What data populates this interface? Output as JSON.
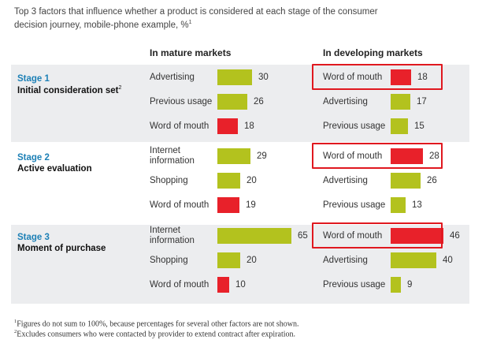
{
  "chart_data": {
    "type": "bar",
    "title": "Top 3 factors that influence whether a product is considered at each stage of the consumer decision journey, mobile-phone example, %",
    "title_footnote": "1",
    "columns": [
      "In mature markets",
      "In developing markets"
    ],
    "stages": [
      {
        "number": "Stage 1",
        "name": "Initial consideration set",
        "footnote": "2",
        "mature": [
          {
            "label": "Advertising",
            "value": 30,
            "color": "#b3c21e"
          },
          {
            "label": "Previous usage",
            "value": 26,
            "color": "#b3c21e"
          },
          {
            "label": "Word of mouth",
            "value": 18,
            "color": "#e8212a"
          }
        ],
        "developing": [
          {
            "label": "Word of mouth",
            "value": 18,
            "color": "#e8212a"
          },
          {
            "label": "Advertising",
            "value": 17,
            "color": "#b3c21e"
          },
          {
            "label": "Previous usage",
            "value": 15,
            "color": "#b3c21e"
          }
        ]
      },
      {
        "number": "Stage 2",
        "name": "Active evaluation",
        "footnote": "",
        "mature": [
          {
            "label": "Internet information",
            "value": 29,
            "color": "#b3c21e"
          },
          {
            "label": "Shopping",
            "value": 20,
            "color": "#b3c21e"
          },
          {
            "label": "Word of mouth",
            "value": 19,
            "color": "#e8212a"
          }
        ],
        "developing": [
          {
            "label": "Word of mouth",
            "value": 28,
            "color": "#e8212a"
          },
          {
            "label": "Advertising",
            "value": 26,
            "color": "#b3c21e"
          },
          {
            "label": "Previous usage",
            "value": 13,
            "color": "#b3c21e"
          }
        ]
      },
      {
        "number": "Stage 3",
        "name": "Moment of purchase",
        "footnote": "",
        "mature": [
          {
            "label": "Internet information",
            "value": 65,
            "color": "#b3c21e"
          },
          {
            "label": "Shopping",
            "value": 20,
            "color": "#b3c21e"
          },
          {
            "label": "Word of mouth",
            "value": 10,
            "color": "#e8212a"
          }
        ],
        "developing": [
          {
            "label": "Word of mouth",
            "value": 46,
            "color": "#e8212a"
          },
          {
            "label": "Advertising",
            "value": 40,
            "color": "#b3c21e"
          },
          {
            "label": "Previous usage",
            "value": 9,
            "color": "#b3c21e"
          }
        ]
      }
    ],
    "highlight_color": "#e0181f"
  },
  "footnotes": [
    {
      "mark": "1",
      "text": "Figures do not sum to 100%, because percentages for several other factors are not shown."
    },
    {
      "mark": "2",
      "text": "Excludes consumers who were contacted by provider to extend contract after expiration."
    }
  ]
}
